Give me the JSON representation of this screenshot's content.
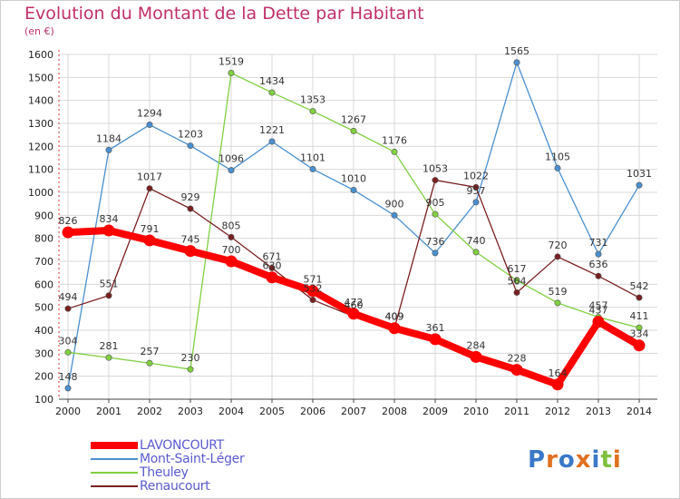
{
  "chart_data": {
    "type": "line",
    "title": "Evolution du Montant de la Dette par Habitant",
    "subtitle": "(en €)",
    "xlabel": "",
    "ylabel": "",
    "x": [
      "2000",
      "2001",
      "2002",
      "2003",
      "2004",
      "2005",
      "2006",
      "2007",
      "2008",
      "2009",
      "2010",
      "2011",
      "2012",
      "2013",
      "2014"
    ],
    "ylim": [
      100,
      1600
    ],
    "yticks": [
      100,
      200,
      300,
      400,
      500,
      600,
      700,
      800,
      900,
      1000,
      1100,
      1200,
      1300,
      1400,
      1500,
      1600
    ],
    "grid": true,
    "legend_position": "bottom-left",
    "series": [
      {
        "name": "LAVONCOURT",
        "color": "#ff0000",
        "values": [
          826,
          834,
          791,
          745,
          700,
          630,
          571,
          472,
          409,
          361,
          284,
          228,
          164,
          437,
          334
        ]
      },
      {
        "name": "Mont-Saint-Léger",
        "color": "#4a90d0",
        "values": [
          148,
          1184,
          1294,
          1203,
          1096,
          1221,
          1101,
          1010,
          900,
          736,
          957,
          1565,
          1105,
          731,
          1031
        ]
      },
      {
        "name": "Theuley",
        "color": "#80d040",
        "values": [
          304,
          281,
          257,
          230,
          1519,
          1434,
          1353,
          1267,
          1176,
          905,
          740,
          617,
          519,
          457,
          411
        ]
      },
      {
        "name": "Renaucourt",
        "color": "#7a2020",
        "values": [
          494,
          551,
          1017,
          929,
          805,
          671,
          532,
          460,
          409,
          1053,
          1022,
          564,
          720,
          636,
          542
        ]
      }
    ]
  },
  "logo": {
    "text": "Proxiti"
  }
}
